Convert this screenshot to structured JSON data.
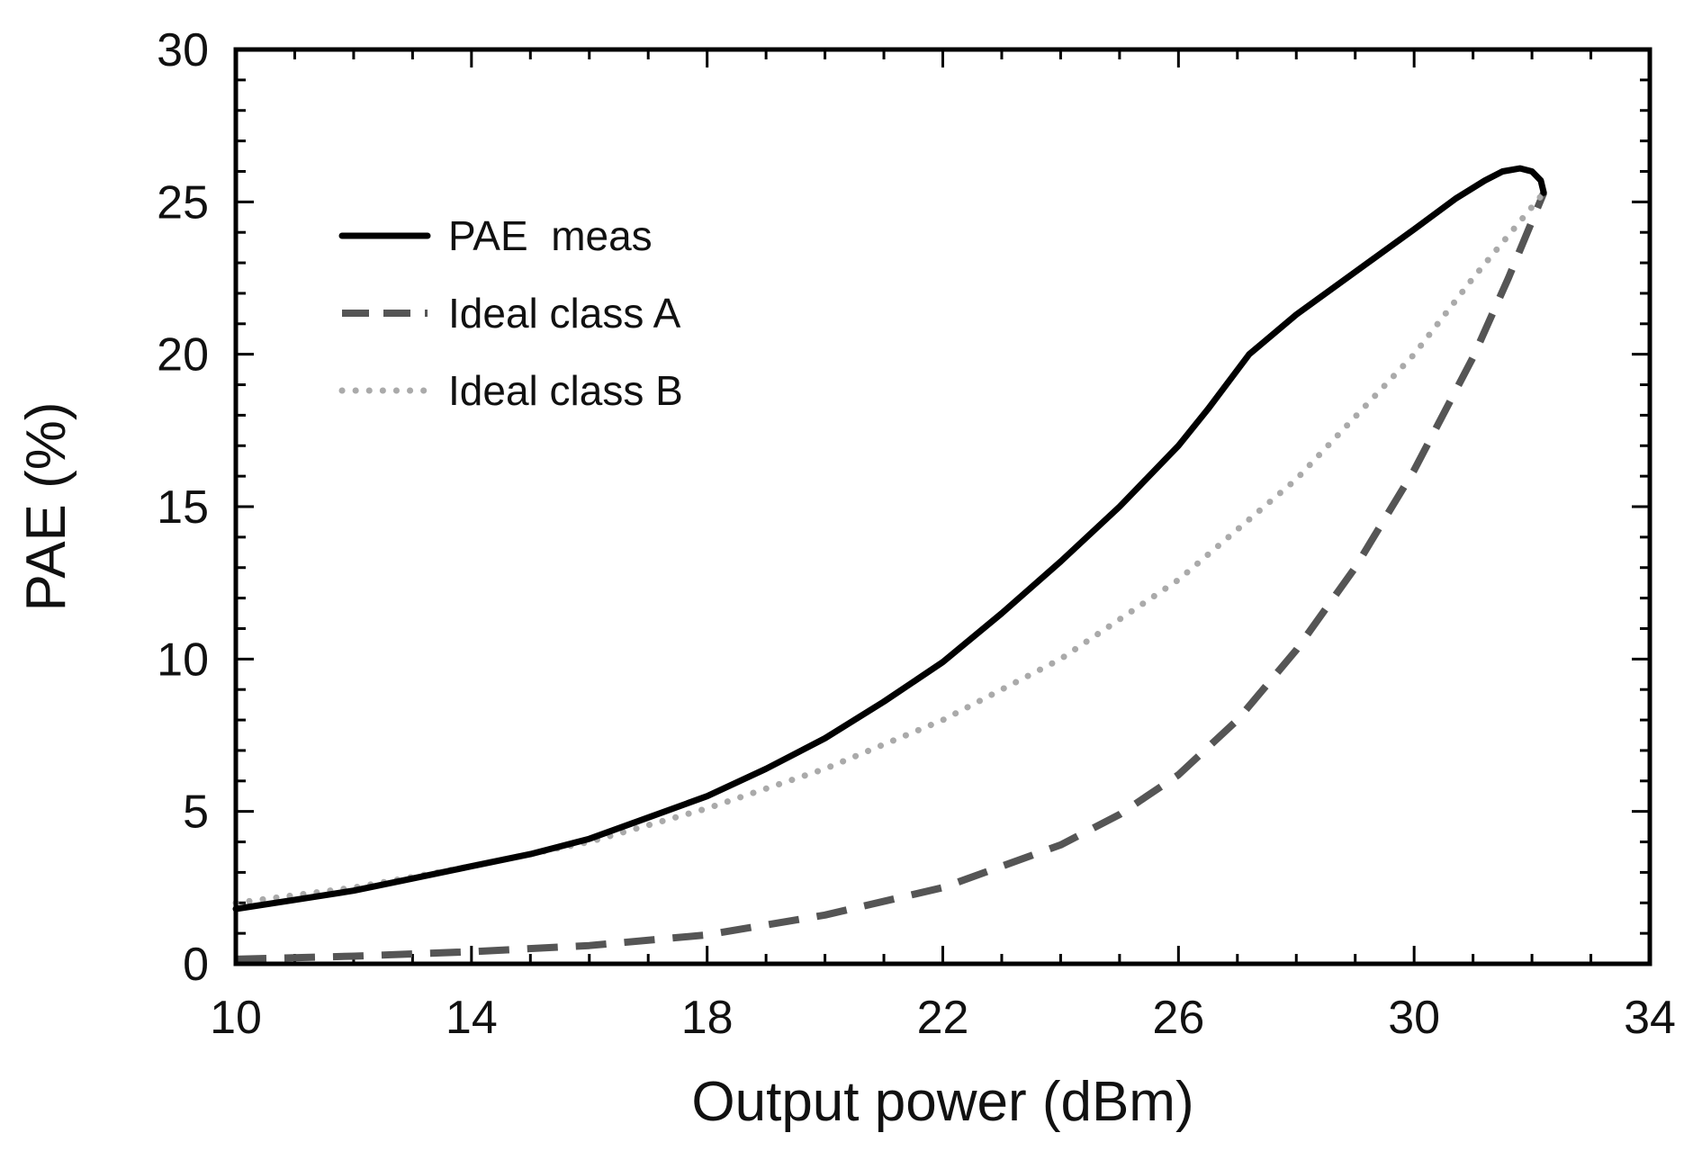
{
  "chart_data": {
    "type": "line",
    "title": "",
    "xlabel": "Output power (dBm)",
    "ylabel": "PAE (%)",
    "xlim": [
      10,
      34
    ],
    "ylim": [
      0,
      30
    ],
    "x_ticks": [
      10,
      14,
      18,
      22,
      26,
      30,
      34
    ],
    "y_ticks": [
      0,
      5,
      10,
      15,
      20,
      25,
      30
    ],
    "legend_position": "upper-left",
    "grid": false,
    "series": [
      {
        "name": "PAE  meas",
        "style": "solid",
        "color": "#000000",
        "points": [
          [
            10,
            1.8
          ],
          [
            11,
            2.1
          ],
          [
            12,
            2.4
          ],
          [
            13,
            2.8
          ],
          [
            14,
            3.2
          ],
          [
            15,
            3.6
          ],
          [
            16,
            4.1
          ],
          [
            17,
            4.8
          ],
          [
            18,
            5.5
          ],
          [
            19,
            6.4
          ],
          [
            20,
            7.4
          ],
          [
            21,
            8.6
          ],
          [
            22,
            9.9
          ],
          [
            23,
            11.5
          ],
          [
            24,
            13.2
          ],
          [
            25,
            15.0
          ],
          [
            26,
            17.0
          ],
          [
            26.5,
            18.2
          ],
          [
            27.2,
            20.0
          ],
          [
            28,
            21.3
          ],
          [
            29,
            22.7
          ],
          [
            30,
            24.1
          ],
          [
            30.7,
            25.1
          ],
          [
            31.2,
            25.7
          ],
          [
            31.5,
            26.0
          ],
          [
            31.8,
            26.1
          ],
          [
            32.0,
            26.0
          ],
          [
            32.15,
            25.7
          ],
          [
            32.2,
            25.3
          ]
        ]
      },
      {
        "name": "Ideal class A",
        "style": "dashed",
        "color": "#555555",
        "points": [
          [
            10,
            0.15
          ],
          [
            12,
            0.25
          ],
          [
            14,
            0.4
          ],
          [
            16,
            0.6
          ],
          [
            18,
            0.95
          ],
          [
            20,
            1.6
          ],
          [
            22,
            2.5
          ],
          [
            24,
            3.9
          ],
          [
            25,
            4.9
          ],
          [
            26,
            6.2
          ],
          [
            27,
            8.0
          ],
          [
            28,
            10.3
          ],
          [
            29,
            13.0
          ],
          [
            30,
            16.2
          ],
          [
            31,
            19.9
          ],
          [
            31.6,
            22.5
          ],
          [
            32.2,
            25.3
          ]
        ]
      },
      {
        "name": "Ideal class B",
        "style": "dotted",
        "color": "#aaaaaa",
        "points": [
          [
            10,
            2.0
          ],
          [
            12,
            2.5
          ],
          [
            14,
            3.2
          ],
          [
            16,
            4.0
          ],
          [
            18,
            5.1
          ],
          [
            20,
            6.4
          ],
          [
            22,
            8.0
          ],
          [
            24,
            10.0
          ],
          [
            26,
            12.6
          ],
          [
            28,
            15.9
          ],
          [
            30,
            20.0
          ],
          [
            31,
            22.5
          ],
          [
            32.2,
            25.3
          ]
        ]
      }
    ]
  }
}
